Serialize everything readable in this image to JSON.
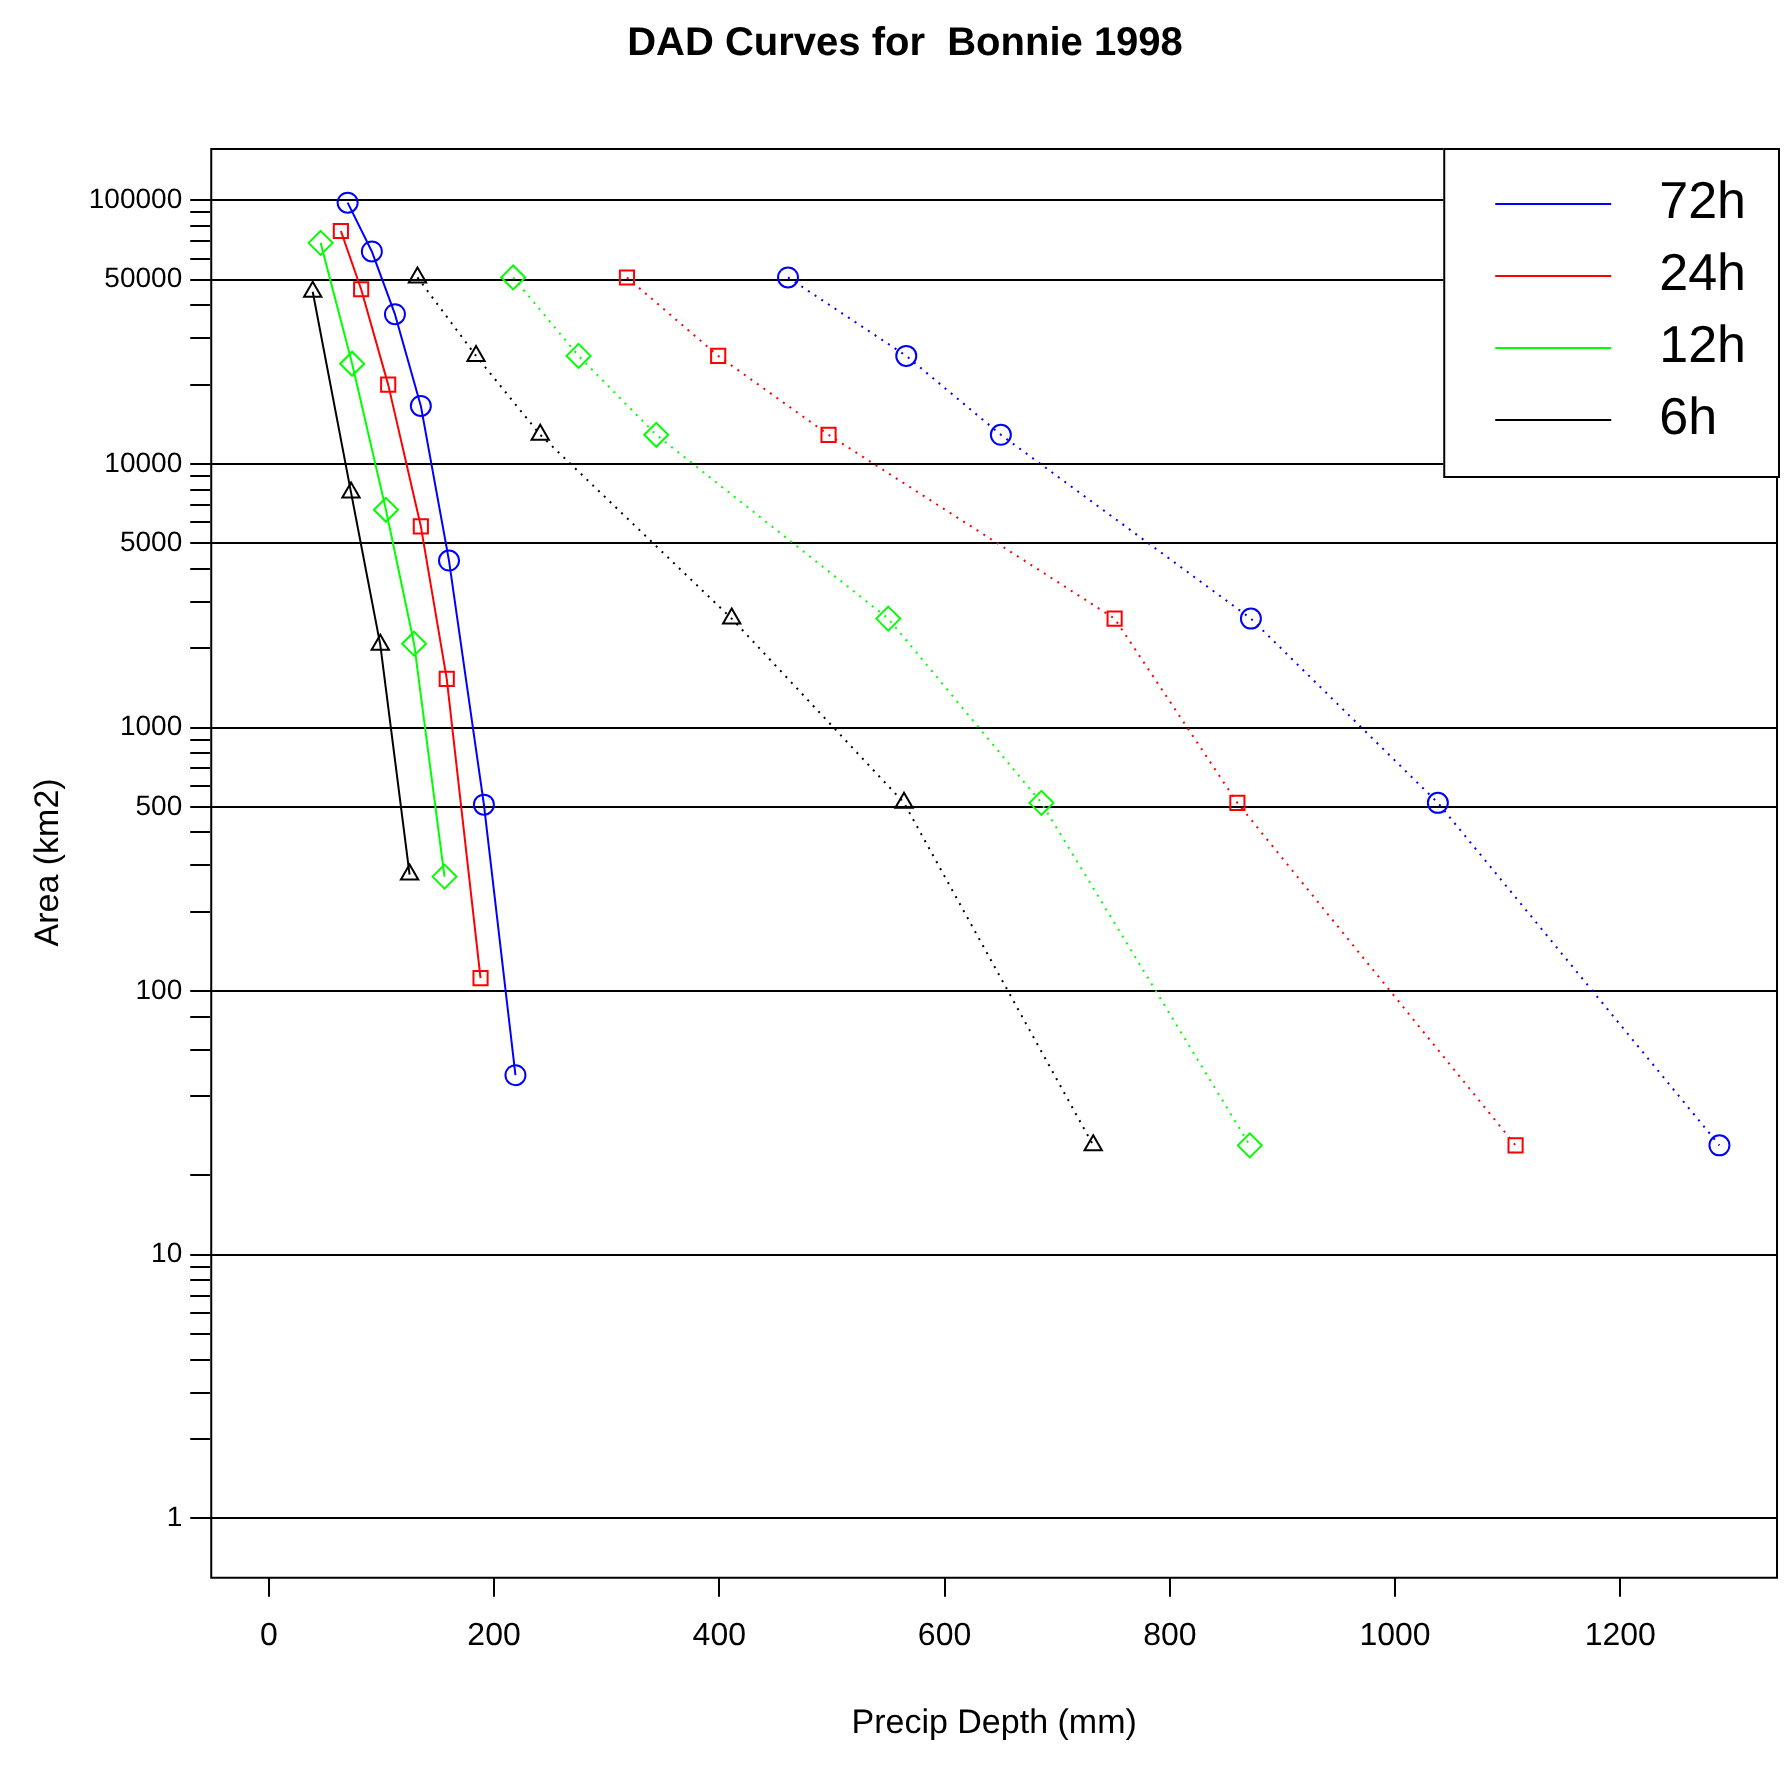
{
  "chart_data": {
    "type": "line",
    "title": "DAD Curves for  Bonnie 1998",
    "xlabel": "Precip Depth (mm)",
    "ylabel": "Area (km2)",
    "log": "y",
    "grid": "y",
    "legend": "top right",
    "xlim": [
      -52,
      1340
    ],
    "xticks": [
      0,
      200,
      400,
      600,
      800,
      1000,
      1200
    ],
    "ylim": [
      0.63,
      158000
    ],
    "yticks": [
      1,
      {
        "value": 2,
        "label": null
      },
      {
        "value": 3,
        "label": null
      },
      {
        "value": 4,
        "label": null
      },
      {
        "value": 5,
        "label": null
      },
      {
        "value": 6,
        "label": null
      },
      {
        "value": 7,
        "label": null
      },
      {
        "value": 8,
        "label": null
      },
      {
        "value": 9,
        "label": null
      },
      10,
      {
        "value": 20,
        "label": null
      },
      {
        "value": 40,
        "label": null
      },
      {
        "value": 60,
        "label": null
      },
      {
        "value": 80,
        "label": null
      },
      100,
      {
        "value": 200,
        "label": null
      },
      {
        "value": 300,
        "label": null
      },
      {
        "value": 400,
        "label": null
      },
      500,
      {
        "value": 600,
        "label": null
      },
      {
        "value": 700,
        "label": null
      },
      {
        "value": 800,
        "label": null
      },
      {
        "value": 900,
        "label": null
      },
      1000,
      {
        "value": 2000,
        "label": null
      },
      {
        "value": 3000,
        "label": null
      },
      {
        "value": 4000,
        "label": null
      },
      5000,
      {
        "value": 6000,
        "label": null
      },
      {
        "value": 7000,
        "label": null
      },
      {
        "value": 8000,
        "label": null
      },
      {
        "value": 9000,
        "label": null
      },
      10000,
      {
        "value": 20000,
        "label": null
      },
      {
        "value": 30000,
        "label": null
      },
      {
        "value": 40000,
        "label": null
      },
      50000,
      {
        "value": 60000,
        "label": null
      },
      {
        "value": 70000,
        "label": null
      },
      {
        "value": 80000,
        "label": null
      },
      {
        "value": 90000,
        "label": null
      },
      100000
    ],
    "series": [
      {
        "name": "72h",
        "color": "#0000ff",
        "marker": "circle",
        "line_style": "solid",
        "x": [
          70,
          91.5,
          112,
          135,
          160,
          191,
          219
        ],
        "values": [
          98000,
          64000,
          37000,
          16600,
          4300,
          510,
          48
        ]
      },
      {
        "name": "24h",
        "color": "#ff0000",
        "marker": "square",
        "line_style": "solid",
        "x": [
          64,
          82,
          106,
          135,
          158,
          188
        ],
        "values": [
          76500,
          46000,
          20000,
          5800,
          1530,
          112
        ]
      },
      {
        "name": "12h",
        "color": "#00ff00",
        "marker": "diamond",
        "line_style": "solid",
        "x": [
          46,
          74,
          104,
          129,
          156
        ],
        "values": [
          69000,
          24000,
          6700,
          2080,
          272
        ]
      },
      {
        "name": "6h",
        "color": "#000000",
        "marker": "triangle",
        "line_style": "solid",
        "x": [
          39,
          73,
          99,
          125
        ],
        "values": [
          45000,
          7800,
          2060,
          277
        ]
      },
      {
        "color": "#0000ff",
        "marker": "circle",
        "line_style": "dotted",
        "x": [
          461,
          566,
          650,
          872,
          1038,
          1288
        ],
        "values": [
          51000,
          25700,
          12900,
          2590,
          518,
          26
        ]
      },
      {
        "color": "#ff0000",
        "marker": "square",
        "line_style": "dotted",
        "x": [
          318,
          399,
          497,
          751,
          860,
          1107
        ],
        "values": [
          51000,
          25700,
          12900,
          2590,
          518,
          26
        ]
      },
      {
        "color": "#00ff00",
        "marker": "diamond",
        "line_style": "dotted",
        "x": [
          217,
          275,
          344,
          550,
          686,
          871
        ],
        "values": [
          51000,
          25700,
          12900,
          2590,
          518,
          26
        ]
      },
      {
        "color": "#000000",
        "marker": "triangle",
        "line_style": "dotted",
        "x": [
          132,
          184,
          241,
          411,
          564,
          732
        ],
        "values": [
          51000,
          25700,
          12900,
          2590,
          518,
          26
        ]
      }
    ]
  }
}
